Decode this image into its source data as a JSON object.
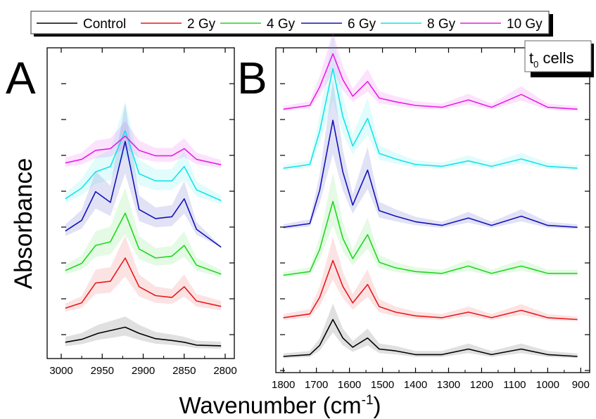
{
  "figure": {
    "ylabel": "Absorbance",
    "xlabel_main": "Wavenumber (cm",
    "xlabel_sup": "-1",
    "xlabel_close": ")"
  },
  "legend": {
    "entries": [
      {
        "label": "Control",
        "color": "#000000"
      },
      {
        "label": "2 Gy",
        "color": "#e8191c"
      },
      {
        "label": "4 Gy",
        "color": "#1fd81f"
      },
      {
        "label": "6 Gy",
        "color": "#1212b8"
      },
      {
        "label": "8 Gy",
        "color": "#12e4ea"
      },
      {
        "label": "10 Gy",
        "color": "#e81ce8"
      }
    ]
  },
  "chart_data": [
    {
      "type": "line",
      "panel_label": "A",
      "xlim": [
        3000,
        2800
      ],
      "x_ticks": [
        3000,
        2950,
        2900,
        2850,
        2800
      ],
      "ylabel": "Absorbance",
      "y_tick_labels": "none",
      "note_offsets": "spectra vertically offset (stacked); error bands shown",
      "series": [
        {
          "name": "Control",
          "color": "#000000",
          "baseline": 0.0,
          "x": [
            2995,
            2975,
            2955,
            2935,
            2922,
            2905,
            2885,
            2865,
            2850,
            2835,
            2805
          ],
          "y": [
            0.2,
            0.28,
            0.45,
            0.55,
            0.62,
            0.45,
            0.3,
            0.25,
            0.2,
            0.12,
            0.1
          ]
        },
        {
          "name": "2 Gy",
          "color": "#e8191c",
          "baseline": 1.0,
          "x": [
            2995,
            2975,
            2958,
            2940,
            2922,
            2905,
            2885,
            2865,
            2850,
            2835,
            2805
          ],
          "y": [
            0.15,
            0.3,
            0.85,
            0.9,
            1.55,
            0.75,
            0.5,
            0.45,
            0.75,
            0.35,
            0.2
          ]
        },
        {
          "name": "4 Gy",
          "color": "#1fd81f",
          "baseline": 2.0,
          "x": [
            2995,
            2975,
            2958,
            2940,
            2922,
            2905,
            2885,
            2865,
            2850,
            2835,
            2805
          ],
          "y": [
            0.2,
            0.4,
            0.9,
            1.0,
            1.8,
            0.8,
            0.55,
            0.6,
            0.9,
            0.35,
            0.1
          ]
        },
        {
          "name": "6 Gy",
          "color": "#1212b8",
          "baseline": 3.0,
          "x": [
            2995,
            2975,
            2958,
            2940,
            2922,
            2905,
            2885,
            2865,
            2850,
            2835,
            2805
          ],
          "y": [
            0.3,
            0.6,
            1.4,
            1.1,
            2.8,
            0.9,
            0.65,
            0.7,
            1.2,
            0.35,
            -0.15
          ]
        },
        {
          "name": "8 Gy",
          "color": "#12e4ea",
          "baseline": 4.0,
          "x": [
            2995,
            2975,
            2958,
            2940,
            2922,
            2905,
            2885,
            2865,
            2850,
            2835,
            2805
          ],
          "y": [
            0.2,
            0.5,
            0.95,
            1.1,
            2.1,
            0.9,
            0.7,
            0.7,
            1.1,
            0.45,
            0.15
          ]
        },
        {
          "name": "10 Gy",
          "color": "#e81ce8",
          "baseline": 5.0,
          "x": [
            2995,
            2975,
            2958,
            2940,
            2922,
            2905,
            2885,
            2865,
            2850,
            2835,
            2805
          ],
          "y": [
            0.2,
            0.3,
            0.55,
            0.6,
            0.95,
            0.55,
            0.4,
            0.4,
            0.6,
            0.3,
            0.15
          ]
        }
      ]
    },
    {
      "type": "line",
      "panel_label": "B",
      "annotation_main": "t",
      "annotation_sub": "0",
      "annotation_rest": " cells",
      "xlim": [
        1810,
        890
      ],
      "x_ticks": [
        1800,
        1700,
        1600,
        1500,
        1400,
        1300,
        1200,
        1100,
        1000,
        900
      ],
      "y_tick_labels": "none",
      "series": [
        {
          "name": "Control",
          "color": "#000000",
          "baseline": 0.0,
          "x": [
            1800,
            1720,
            1690,
            1650,
            1620,
            1590,
            1545,
            1510,
            1460,
            1400,
            1320,
            1240,
            1170,
            1080,
            1000,
            910
          ],
          "y": [
            0.0,
            0.05,
            0.3,
            1.0,
            0.5,
            0.25,
            0.5,
            0.2,
            0.15,
            0.05,
            0.05,
            0.2,
            0.05,
            0.2,
            0.05,
            0.0
          ]
        },
        {
          "name": "2 Gy",
          "color": "#e8191c",
          "baseline": 1.0,
          "x": [
            1800,
            1720,
            1690,
            1650,
            1620,
            1590,
            1545,
            1510,
            1460,
            1400,
            1320,
            1240,
            1170,
            1080,
            1000,
            910
          ],
          "y": [
            0.05,
            0.15,
            0.6,
            1.6,
            0.9,
            0.45,
            0.95,
            0.35,
            0.2,
            0.1,
            0.05,
            0.2,
            0.05,
            0.25,
            0.05,
            0.0
          ]
        },
        {
          "name": "4 Gy",
          "color": "#1fd81f",
          "baseline": 2.2,
          "x": [
            1800,
            1720,
            1690,
            1650,
            1620,
            1590,
            1545,
            1510,
            1460,
            1400,
            1320,
            1240,
            1170,
            1080,
            1000,
            910
          ],
          "y": [
            0.0,
            0.1,
            0.7,
            2.0,
            1.0,
            0.45,
            1.1,
            0.35,
            0.2,
            0.1,
            0.05,
            0.25,
            0.05,
            0.25,
            0.05,
            0.05
          ]
        },
        {
          "name": "6 Gy",
          "color": "#1212b8",
          "baseline": 3.5,
          "x": [
            1800,
            1720,
            1690,
            1650,
            1620,
            1590,
            1545,
            1510,
            1460,
            1400,
            1320,
            1240,
            1170,
            1080,
            1000,
            910
          ],
          "y": [
            0.0,
            0.1,
            1.0,
            2.9,
            1.5,
            0.6,
            1.55,
            0.45,
            0.3,
            0.15,
            0.05,
            0.25,
            0.05,
            0.3,
            0.05,
            0.0
          ]
        },
        {
          "name": "8 Gy",
          "color": "#12e4ea",
          "baseline": 5.1,
          "x": [
            1800,
            1720,
            1690,
            1650,
            1620,
            1590,
            1545,
            1510,
            1460,
            1400,
            1320,
            1240,
            1170,
            1080,
            1000,
            910
          ],
          "y": [
            0.0,
            0.1,
            1.0,
            2.7,
            1.4,
            0.6,
            1.35,
            0.4,
            0.25,
            0.1,
            0.05,
            0.2,
            0.05,
            0.25,
            0.05,
            0.0
          ]
        },
        {
          "name": "10 Gy",
          "color": "#e81ce8",
          "baseline": 6.7,
          "x": [
            1800,
            1720,
            1690,
            1650,
            1620,
            1590,
            1545,
            1510,
            1460,
            1400,
            1320,
            1240,
            1170,
            1080,
            1000,
            910
          ],
          "y": [
            0.0,
            0.1,
            0.6,
            1.5,
            0.8,
            0.35,
            0.75,
            0.3,
            0.2,
            0.1,
            0.05,
            0.25,
            0.05,
            0.4,
            0.05,
            0.0
          ]
        }
      ]
    }
  ]
}
